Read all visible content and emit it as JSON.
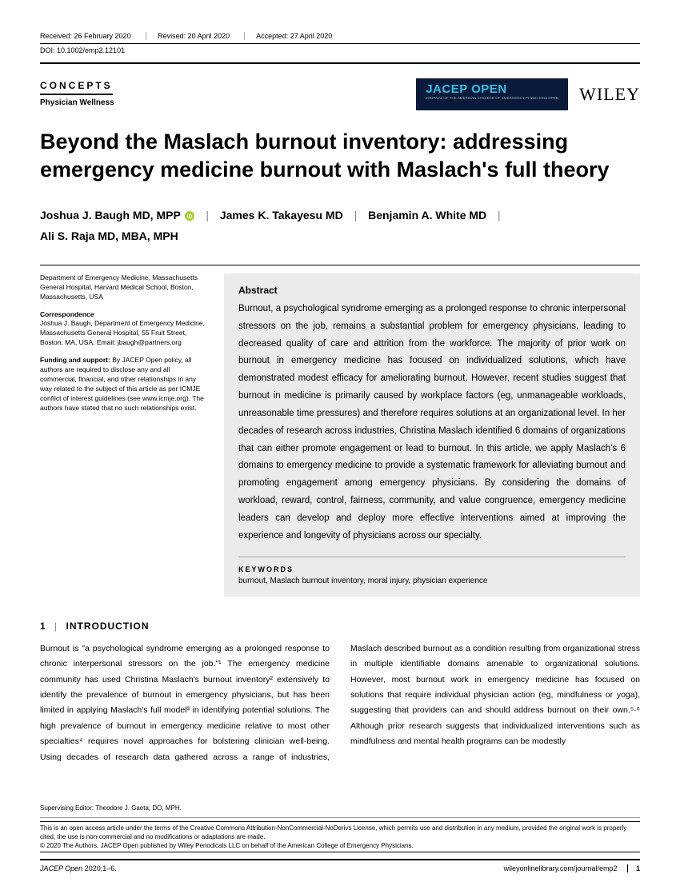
{
  "receipt": {
    "received": "Received: 26 February 2020",
    "revised": "Revised: 20 April 2020",
    "accepted": "Accepted: 27 April 2020"
  },
  "doi": "DOI: 10.1002/emp2.12101",
  "article_type": "CONCEPTS",
  "subdiscipline": "Physician Wellness",
  "journal_badge": "JACEP OPEN",
  "journal_badge_sub": "JOURNAL OF THE AMERICAN COLLEGE OF EMERGENCY PHYSICIANS OPEN",
  "publisher": "WILEY",
  "title": "Beyond the Maslach burnout inventory: addressing emergency medicine burnout with Maslach's full theory",
  "authors_html": "Joshua J.  Baugh  MD, MPP",
  "authors": [
    {
      "name": "Joshua J.  Baugh  MD, MPP",
      "orcid": true
    },
    {
      "name": "James K. Takayesu MD",
      "orcid": false
    },
    {
      "name": "Benjamin A. White MD",
      "orcid": false
    },
    {
      "name": "Ali S. Raja MD, MBA, MPH",
      "orcid": false
    }
  ],
  "affiliation": "Department of Emergency Medicine, Massachusetts General Hospital, Harvard Medical School, Boston, Massachusetts, USA",
  "correspondence_hd": "Correspondence",
  "correspondence": "Joshua J. Baugh, Department of Emergency Medicine, Massachusetts General Hospital, 55 Fruit Street, Boston, MA, USA. Email: jbaugh@partners.org",
  "funding_hd": "Funding and support:",
  "funding": " By JACEP Open policy, all authors are required to disclose any and all commercial, financial, and other relationships in any way related to the subject of this article as per ICMJE conflict of interest guidelines (see www.icmje.org). The authors have stated that no such relationships exist.",
  "abstract_hd": "Abstract",
  "abstract": "Burnout, a psychological syndrome emerging as a prolonged response to chronic interpersonal stressors on the job, remains a substantial problem for emergency physicians, leading to decreased quality of care and attrition from the workforce. The majority of prior work on burnout in emergency medicine has focused on individualized solutions, which have demonstrated modest efficacy for ameliorating burnout. However, recent studies suggest that burnout in medicine is primarily caused by workplace factors (eg, unmanageable workloads, unreasonable time pressures) and therefore requires solutions at an organizational level. In her decades of research across industries, Christina Maslach identified 6 domains of organizations that can either promote engagement or lead to burnout. In this article, we apply Maslach's 6 domains to emergency medicine to provide a systematic framework for alleviating burnout and promoting engagement among emergency physicians. By considering the domains of workload, reward, control, fairness, community, and value congruence, emergency medicine leaders can develop and deploy more effective interventions aimed at improving the experience and longevity of physicians across our specialty.",
  "keywords_hd": "KEYWORDS",
  "keywords": "burnout, Maslach burnout inventory, moral injury, physician experience",
  "section1_num": "1",
  "section1_title": "INTRODUCTION",
  "intro_para": "Burnout is \"a psychological syndrome emerging as a prolonged response to chronic interpersonal stressors on the job.\"¹ The emergency medicine community has used Christina Maslach's burnout inventory² extensively to identify the prevalence of burnout in emergency physicians, but has been limited in applying Maslach's full model³ in identifying potential solutions. The high prevalence of burnout in emergency medicine relative to most other specialties⁴ requires novel approaches for bolstering clinician well-being. Using decades of research data gathered across a range of industries, Maslach described burnout as a condition resulting from organizational stress in multiple identifiable domains amenable to organizational solutions. However, most burnout work in emergency medicine has focused on solutions that require individual physician action (eg, mindfulness or yoga), suggesting that providers can and should address burnout on their own.⁵·⁶ Although prior research suggests that individualized interventions such as mindfulness and mental health programs can be modestly",
  "supervising": "Supervising Editor: Theodore J. Gaeta, DO, MPH.",
  "license1": "This is an open access article under the terms of the Creative Commons Attribution-NonCommercial-NoDerivs License, which permits use and distribution in any medium, provided the original work is properly cited, the use is non-commercial and no modifications or adaptations are made.",
  "license2": "© 2020 The Authors. JACEP Open published by Wiley Periodicals LLC on behalf of the American College of Emergency Physicians.",
  "citation": "JACEP Open",
  "citation_rest": " 2020;1–6.",
  "journal_url": "wileyonlinelibrary.com/journal/emp2",
  "page_num": "1"
}
